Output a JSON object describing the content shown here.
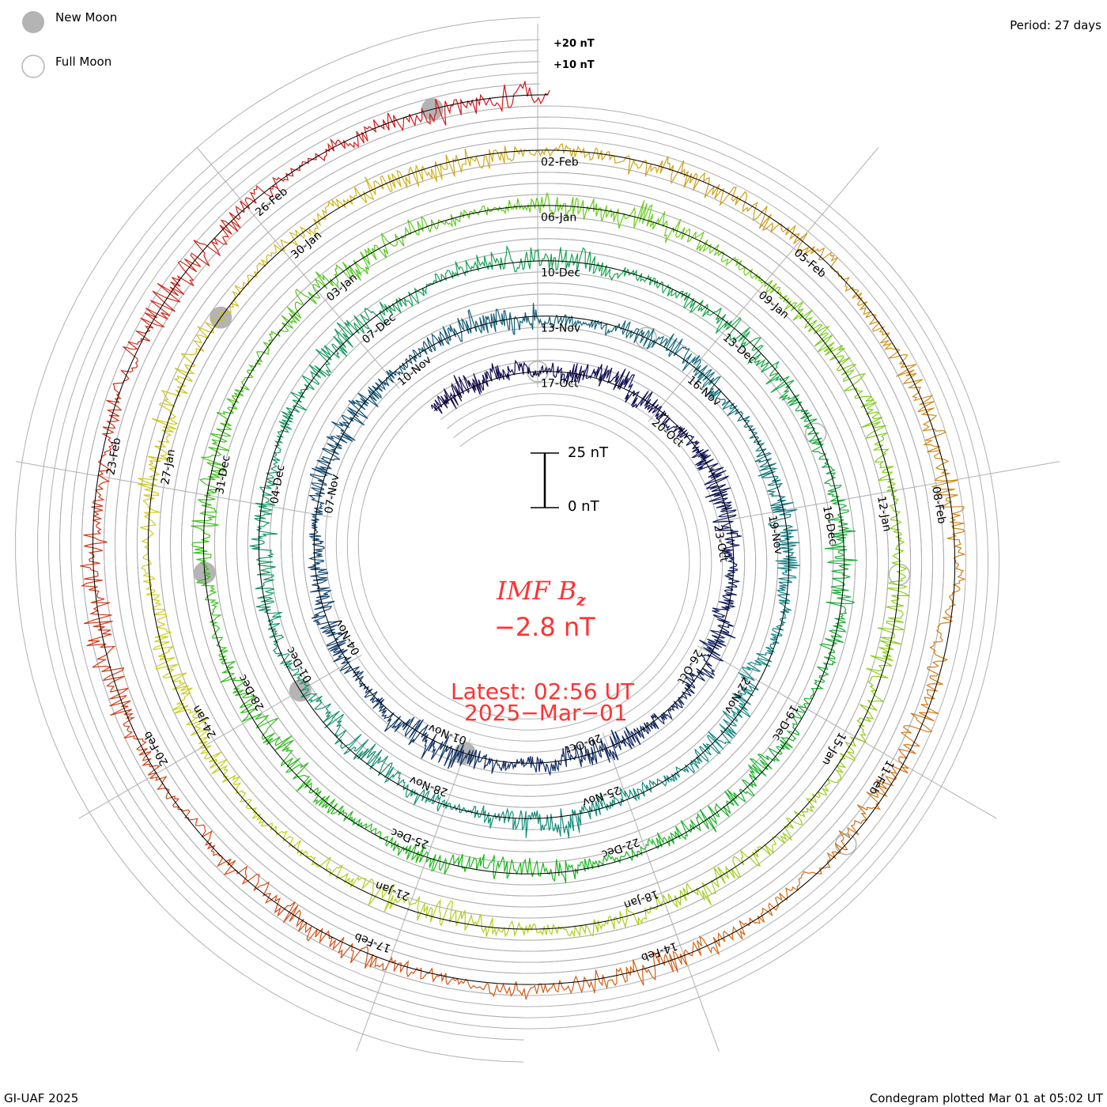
{
  "legend": {
    "new_moon": "New Moon",
    "full_moon": "Full Moon"
  },
  "period_label": "Period: 27 days",
  "footer_left": "GI-UAF 2025",
  "footer_right": "Condegram plotted Mar 01 at 05:02 UT",
  "center": {
    "title_main": "IMF B",
    "title_sub": "z",
    "value": "−2.8 nT",
    "latest": "Latest: 02:56 UT",
    "date": "2025−Mar−01",
    "scale_top": "25 nT",
    "scale_bottom": "0 nT"
  },
  "chart_data": {
    "type": "line",
    "subtype": "condegram-spiral",
    "title": "IMF Bz",
    "period_days": 27,
    "reference_date": "17-Oct",
    "start_day": -2.7,
    "end_day": 135.12,
    "latest_value_nT": -2.8,
    "ring_labels": [
      "+20 nT",
      "+10 nT"
    ],
    "grid_step_nT": 5,
    "date_labels": [
      "17-Oct",
      "20-Oct",
      "23-Oct",
      "26-Oct",
      "29-Oct",
      "01-Nov",
      "04-Nov",
      "07-Nov",
      "10-Nov",
      "13-Nov",
      "16-Nov",
      "19-Nov",
      "22-Nov",
      "25-Nov",
      "28-Nov",
      "01-Dec",
      "04-Dec",
      "07-Dec",
      "10-Dec",
      "13-Dec",
      "16-Dec",
      "19-Dec",
      "22-Dec",
      "25-Dec",
      "28-Dec",
      "31-Dec",
      "03-Jan",
      "06-Jan",
      "09-Jan",
      "12-Jan",
      "15-Jan",
      "18-Jan",
      "21-Jan",
      "24-Jan",
      "27-Jan",
      "30-Jan",
      "02-Feb",
      "05-Feb",
      "08-Feb",
      "11-Feb",
      "14-Feb",
      "17-Feb",
      "20-Feb",
      "23-Feb",
      "26-Feb"
    ],
    "new_moon_days": [
      15,
      45,
      74,
      104,
      134
    ],
    "full_moon_days": [
      0,
      29,
      59,
      88,
      118
    ],
    "colors": {
      "grid": "#b0b0b0",
      "baseline": "#000000",
      "moon": "#b4b4b4",
      "text_red": "#ff3333"
    }
  }
}
